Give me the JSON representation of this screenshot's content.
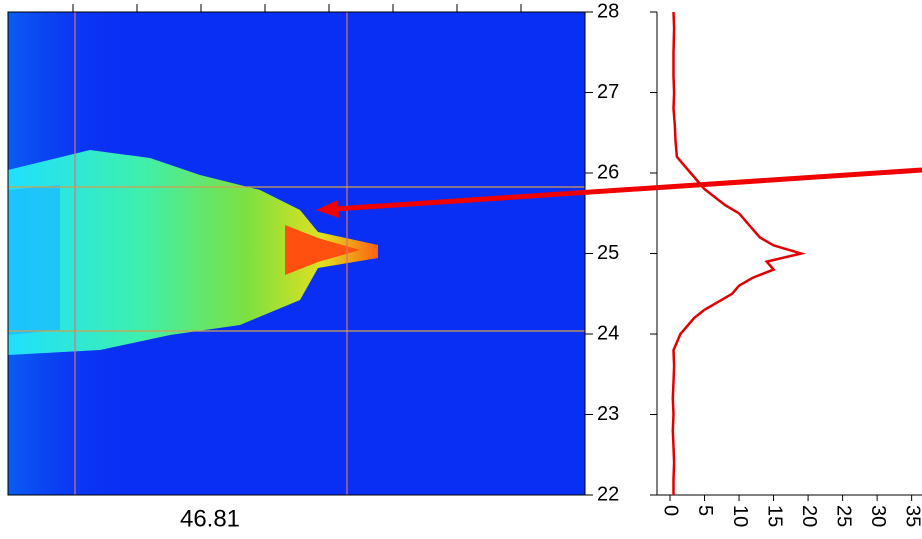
{
  "chart_data": [
    {
      "type": "heatmap",
      "annotation": "46.81",
      "ylim": [
        22,
        28
      ],
      "yticks": [
        22,
        23,
        24,
        25,
        26,
        27,
        28
      ]
    },
    {
      "type": "profile",
      "color": "#e00000",
      "xlim": [
        0,
        36.5
      ],
      "xticks": [
        0,
        5,
        10,
        15,
        20,
        25,
        30,
        35
      ],
      "x": [
        0.5,
        0.5,
        0.6,
        0.5,
        0.4,
        0.5,
        0.4,
        0.5,
        0.6,
        0.5,
        1.5,
        3.5,
        5,
        7,
        9,
        10,
        12,
        15,
        14,
        19,
        15,
        13,
        12,
        11,
        10,
        8,
        5,
        3,
        1,
        0.8,
        0.7,
        0.5,
        0.6,
        0.5,
        0.5,
        0.6,
        0.5
      ],
      "y": [
        22,
        22.2,
        22.4,
        22.6,
        22.8,
        23,
        23.2,
        23.4,
        23.6,
        23.8,
        24,
        24.2,
        24.3,
        24.4,
        24.5,
        24.6,
        24.7,
        24.8,
        24.9,
        25,
        25.1,
        25.2,
        25.3,
        25.4,
        25.5,
        25.6,
        25.8,
        26,
        26.2,
        26.4,
        26.6,
        26.8,
        27,
        27.2,
        27.5,
        27.8,
        28
      ]
    }
  ]
}
